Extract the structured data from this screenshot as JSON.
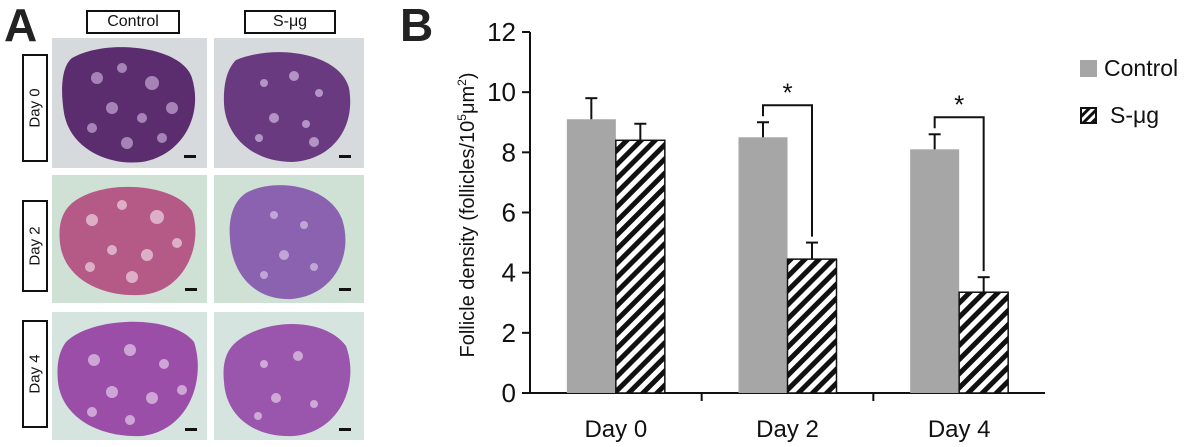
{
  "panel_a": {
    "letter": "A",
    "column_labels": [
      "Control",
      "S-μg"
    ],
    "row_labels": [
      "Day 0",
      "Day 2",
      "Day 4"
    ],
    "image_descriptions": "H&E stained ovary sections with scale bars",
    "colors": {
      "dark_purple": "#5c2d6e",
      "pink": "#b55a86",
      "light_purple": "#8b62b0",
      "background_tissue": "#d9dde0"
    }
  },
  "panel_b": {
    "letter": "B"
  },
  "chart_data": {
    "type": "bar",
    "categories": [
      "Day 0",
      "Day 2",
      "Day 4"
    ],
    "series": [
      {
        "name": "Control",
        "values": [
          9.1,
          8.5,
          8.1
        ],
        "errors": [
          0.7,
          0.5,
          0.5
        ],
        "color": "#a6a6a6",
        "pattern": "solid"
      },
      {
        "name": "S-μg",
        "values": [
          8.4,
          4.45,
          3.35
        ],
        "errors": [
          0.55,
          0.55,
          0.5
        ],
        "color": "#111111",
        "pattern": "diagonal-hatch"
      }
    ],
    "ylabel_main": "Follicle density (follicles/10",
    "ylabel_sup": "5",
    "ylabel_unit": "μm",
    "ylabel_sup2": "2",
    "ylabel_end": ")",
    "ylim": [
      0,
      12
    ],
    "yticks": [
      0,
      2,
      4,
      6,
      8,
      10,
      12
    ],
    "significance": [
      {
        "category": "Day 2",
        "label": "*"
      },
      {
        "category": "Day 4",
        "label": "*"
      }
    ],
    "legend_position": "top-right"
  }
}
